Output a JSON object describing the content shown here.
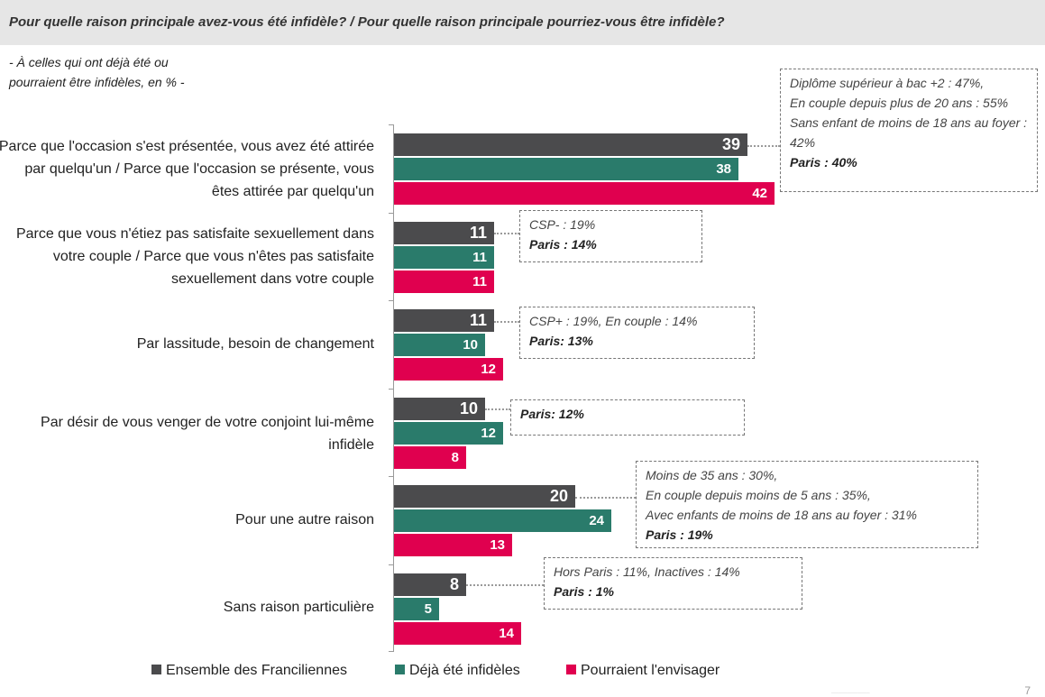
{
  "header": {
    "title": "Pour quelle raison principale avez-vous été infidèle? / Pour quelle raison principale pourriez-vous être infidèle?"
  },
  "subtitle_lines": [
    "- À celles qui ont déjà été ou",
    "pourraient être infidèles, en % -"
  ],
  "chart_data": {
    "type": "bar",
    "orientation": "horizontal",
    "categories": [
      "Parce que l'occasion s'est présentée, vous avez été attirée par quelqu'un / Parce que l'occasion se présente, vous êtes attirée par quelqu'un",
      "Parce que vous n'étiez pas satisfaite sexuellement dans votre couple / Parce que vous n'êtes pas satisfaite sexuellement dans votre couple",
      "Par lassitude, besoin de changement",
      "Par désir de vous venger de votre conjoint lui-même infidèle",
      "Pour une autre raison",
      "Sans raison particulière"
    ],
    "series": [
      {
        "name": "Ensemble des Franciliennes",
        "values": [
          39,
          11,
          11,
          10,
          20,
          8
        ],
        "color": "#4b4b4d"
      },
      {
        "name": "Déjà été infidèles",
        "values": [
          38,
          11,
          10,
          12,
          24,
          5
        ],
        "color": "#2a7b6b"
      },
      {
        "name": "Pourraient l'envisager",
        "values": [
          42,
          11,
          12,
          8,
          13,
          14
        ],
        "color": "#e0004f"
      }
    ],
    "xlim": [
      0,
      42
    ],
    "legend_position": "bottom",
    "grid": false,
    "annotations": [
      {
        "category_index": 0,
        "lines": [
          {
            "text": "Diplôme supérieur à bac +2 : 47%,",
            "bold": false
          },
          {
            "text": "En couple depuis plus de 20 ans : 55%",
            "bold": false
          },
          {
            "text": "Sans enfant de moins de 18 ans au foyer : 42%",
            "bold": false
          },
          {
            "text": "Paris : 40%",
            "bold": true
          }
        ]
      },
      {
        "category_index": 1,
        "lines": [
          {
            "text": "CSP- : 19%",
            "bold": false
          },
          {
            "text": "Paris : 14%",
            "bold": true
          }
        ]
      },
      {
        "category_index": 2,
        "lines": [
          {
            "text": "CSP+ : 19%, En couple : 14%",
            "bold": false
          },
          {
            "text": "Paris:  13%",
            "bold": true
          }
        ]
      },
      {
        "category_index": 3,
        "lines": [
          {
            "text": "Paris:  12%",
            "bold": true
          }
        ]
      },
      {
        "category_index": 4,
        "lines": [
          {
            "text": "Moins de 35 ans : 30%,",
            "bold": false
          },
          {
            "text": "En couple depuis moins de 5 ans : 35%,",
            "bold": false
          },
          {
            "text": "Avec enfants de moins de 18 ans au foyer : 31%",
            "bold": false
          },
          {
            "text": "Paris : 19%",
            "bold": true
          }
        ]
      },
      {
        "category_index": 5,
        "lines": [
          {
            "text": "Hors Paris : 11%, Inactives : 14%",
            "bold": false
          },
          {
            "text": "Paris : 1%",
            "bold": true
          }
        ]
      }
    ]
  },
  "page_number": "7"
}
